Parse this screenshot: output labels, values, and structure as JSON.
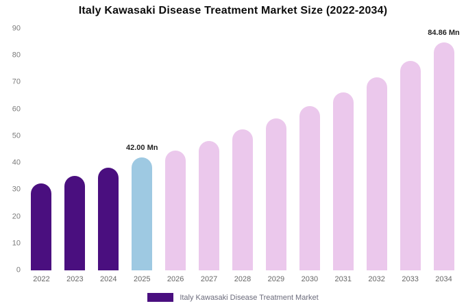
{
  "chart_data": {
    "type": "bar",
    "title": "Italy Kawasaki Disease Treatment Market Size (2022-2034)",
    "categories": [
      "2022",
      "2023",
      "2024",
      "2025",
      "2026",
      "2027",
      "2028",
      "2029",
      "2030",
      "2031",
      "2032",
      "2033",
      "2034"
    ],
    "values": [
      32.5,
      35.2,
      38.2,
      42.0,
      44.6,
      48.2,
      52.4,
      56.6,
      61.2,
      66.3,
      71.9,
      77.9,
      84.86
    ],
    "segments": [
      "historical",
      "historical",
      "historical",
      "current",
      "forecast",
      "forecast",
      "forecast",
      "forecast",
      "forecast",
      "forecast",
      "forecast",
      "forecast",
      "forecast"
    ],
    "segment_colors": {
      "historical": "#4A0F7F",
      "current": "#9EC9E2",
      "forecast": "#EBC8EC"
    },
    "ylim": [
      0,
      90
    ],
    "yticks": [
      0,
      10,
      20,
      30,
      40,
      50,
      60,
      70,
      80,
      90
    ],
    "grid": false,
    "legend_position": "bottom",
    "annotations": [
      {
        "category": "2025",
        "text": "42.00 Mn"
      },
      {
        "category": "2034",
        "text": "84.86 Mn"
      }
    ]
  },
  "legend": {
    "items": [
      {
        "label": "Italy Kawasaki Disease Treatment Market",
        "color": "#4A0F7F"
      }
    ]
  }
}
